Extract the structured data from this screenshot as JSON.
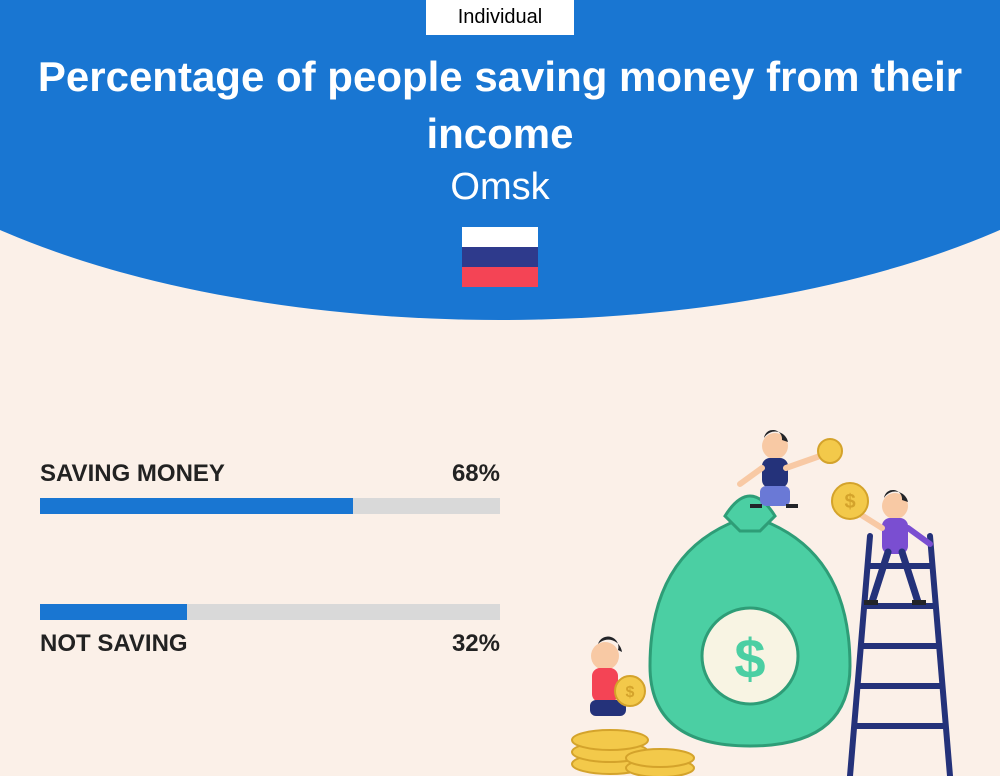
{
  "tag": "Individual",
  "title": "Percentage of people saving money from their income",
  "location": "Omsk",
  "flag_colors": [
    "#ffffff",
    "#2e3a8c",
    "#f44455"
  ],
  "header_bg": "#1976d2",
  "page_bg": "#fbf0e8",
  "bar_color": "#1976d2",
  "track_color": "#d9d9d9",
  "series": [
    {
      "label": "SAVING MONEY",
      "value": 68,
      "display": "68%",
      "label_position": "above"
    },
    {
      "label": "NOT SAVING",
      "value": 32,
      "display": "32%",
      "label_position": "below"
    }
  ],
  "illustration": {
    "bag_color": "#4bcfa3",
    "bag_outline": "#2e9d77",
    "coin_color": "#f3c94a",
    "coin_outline": "#d4a32b",
    "ladder_color": "#24327a",
    "person1_top": "#24327a",
    "person1_bottom": "#6a79d6",
    "person2_top": "#f44455",
    "person3_top": "#7a4ed1",
    "skin": "#f8c9a4",
    "hair": "#222428"
  }
}
